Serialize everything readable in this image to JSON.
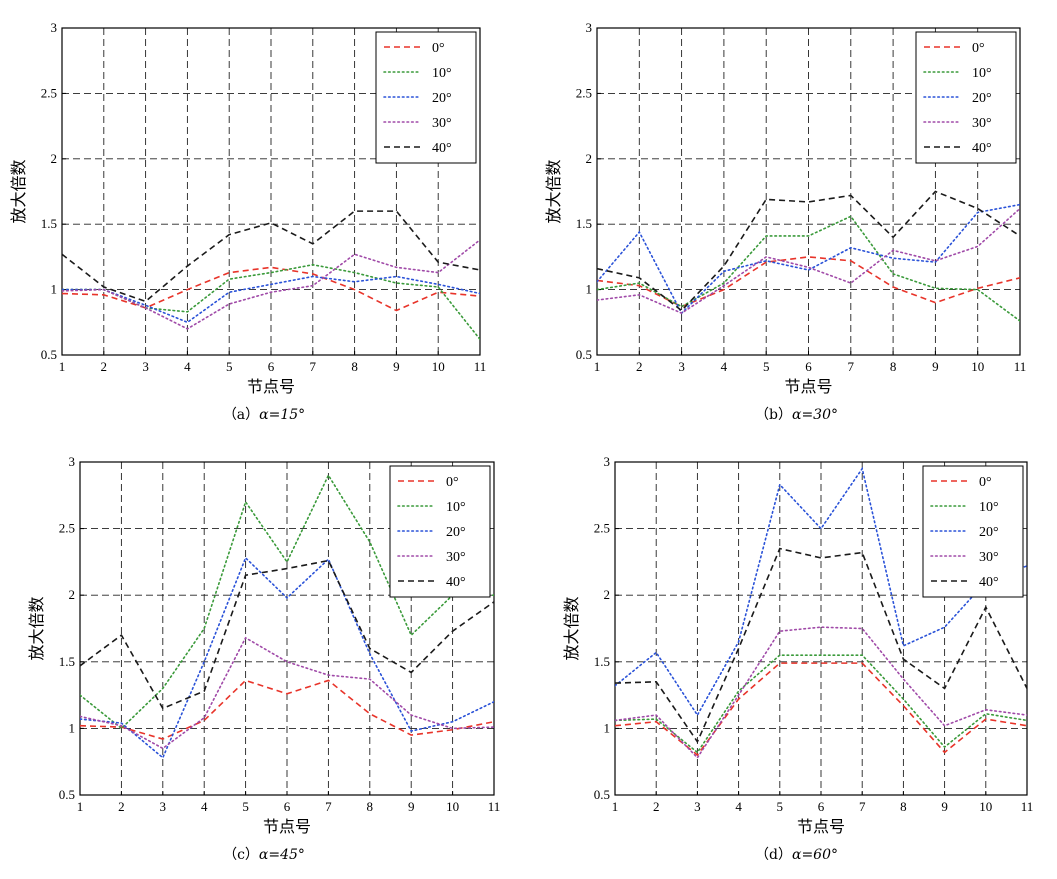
{
  "chart_data": [
    {
      "type": "line",
      "caption_prefix": "（a）",
      "caption_alpha": "α=15°",
      "xlabel": "节点号",
      "ylabel": "放大倍数",
      "x": [
        1,
        2,
        3,
        4,
        5,
        6,
        7,
        8,
        9,
        10,
        11
      ],
      "ylim": [
        0.5,
        3
      ],
      "xlim": [
        1,
        11
      ],
      "yticks": [
        "0.5",
        "1",
        "1.5",
        "2",
        "2.5",
        "3"
      ],
      "xticks": [
        "1",
        "2",
        "3",
        "4",
        "5",
        "6",
        "7",
        "8",
        "9",
        "10",
        "11"
      ],
      "grid": true,
      "legend_position": "top-right",
      "series": [
        {
          "name": "0°",
          "color": "#e8342a",
          "dash": "dashed",
          "values": [
            0.97,
            0.96,
            0.86,
            1.0,
            1.13,
            1.17,
            1.12,
            1.0,
            0.84,
            0.98,
            0.95
          ]
        },
        {
          "name": "10°",
          "color": "#3a9a3a",
          "dash": "dotted",
          "values": [
            1.0,
            1.0,
            0.86,
            0.83,
            1.08,
            1.13,
            1.19,
            1.13,
            1.05,
            1.02,
            0.62
          ]
        },
        {
          "name": "20°",
          "color": "#2a52d8",
          "dash": "dotted",
          "values": [
            1.0,
            1.0,
            0.88,
            0.75,
            0.98,
            1.04,
            1.1,
            1.06,
            1.1,
            1.04,
            0.97
          ]
        },
        {
          "name": "30°",
          "color": "#a04aa8",
          "dash": "dotted",
          "values": [
            0.99,
            1.0,
            0.86,
            0.7,
            0.89,
            0.98,
            1.03,
            1.27,
            1.17,
            1.13,
            1.38
          ]
        },
        {
          "name": "40°",
          "color": "#1a1a1a",
          "dash": "dashed",
          "values": [
            1.27,
            1.02,
            0.91,
            1.18,
            1.42,
            1.51,
            1.35,
            1.6,
            1.6,
            1.21,
            1.15
          ]
        }
      ]
    },
    {
      "type": "line",
      "caption_prefix": "（b）",
      "caption_alpha": "α=30°",
      "xlabel": "节点号",
      "ylabel": "放大倍数",
      "x": [
        1,
        2,
        3,
        4,
        5,
        6,
        7,
        8,
        9,
        10,
        11
      ],
      "ylim": [
        0.5,
        3
      ],
      "xlim": [
        1,
        11
      ],
      "yticks": [
        "0.5",
        "1",
        "1.5",
        "2",
        "2.5",
        "3"
      ],
      "xticks": [
        "1",
        "2",
        "3",
        "4",
        "5",
        "6",
        "7",
        "8",
        "9",
        "10",
        "11"
      ],
      "grid": true,
      "legend_position": "top-right",
      "series": [
        {
          "name": "0°",
          "color": "#e8342a",
          "dash": "dashed",
          "values": [
            1.07,
            1.03,
            0.87,
            1.0,
            1.21,
            1.25,
            1.22,
            1.02,
            0.9,
            1.01,
            1.09
          ]
        },
        {
          "name": "10°",
          "color": "#3a9a3a",
          "dash": "dotted",
          "values": [
            1.0,
            1.05,
            0.87,
            1.05,
            1.41,
            1.41,
            1.56,
            1.12,
            1.01,
            1.0,
            0.76
          ]
        },
        {
          "name": "20°",
          "color": "#2a52d8",
          "dash": "dotted",
          "values": [
            1.06,
            1.44,
            0.82,
            1.14,
            1.22,
            1.15,
            1.32,
            1.24,
            1.21,
            1.59,
            1.65
          ]
        },
        {
          "name": "30°",
          "color": "#a04aa8",
          "dash": "dotted",
          "values": [
            0.92,
            0.96,
            0.82,
            1.03,
            1.25,
            1.17,
            1.05,
            1.3,
            1.22,
            1.33,
            1.62
          ]
        },
        {
          "name": "40°",
          "color": "#1a1a1a",
          "dash": "dashed",
          "values": [
            1.16,
            1.09,
            0.84,
            1.18,
            1.69,
            1.67,
            1.72,
            1.4,
            1.75,
            1.62,
            1.41
          ]
        }
      ]
    },
    {
      "type": "line",
      "caption_prefix": "（c）",
      "caption_alpha": "α=45°",
      "xlabel": "节点号",
      "ylabel": "放大倍数",
      "x": [
        1,
        2,
        3,
        4,
        5,
        6,
        7,
        8,
        9,
        10,
        11
      ],
      "ylim": [
        0.5,
        3
      ],
      "xlim": [
        1,
        11
      ],
      "yticks": [
        "0.5",
        "1",
        "1.5",
        "2",
        "2.5",
        "3"
      ],
      "xticks": [
        "1",
        "2",
        "3",
        "4",
        "5",
        "6",
        "7",
        "8",
        "9",
        "10",
        "11"
      ],
      "grid": true,
      "legend_position": "top-right",
      "series": [
        {
          "name": "0°",
          "color": "#e8342a",
          "dash": "dashed",
          "values": [
            1.02,
            1.01,
            0.92,
            1.06,
            1.36,
            1.26,
            1.36,
            1.11,
            0.95,
            0.99,
            1.05
          ]
        },
        {
          "name": "10°",
          "color": "#3a9a3a",
          "dash": "dotted",
          "values": [
            1.25,
            1.0,
            1.3,
            1.75,
            2.7,
            2.25,
            2.9,
            2.4,
            1.7,
            2.0,
            2.0
          ]
        },
        {
          "name": "20°",
          "color": "#2a52d8",
          "dash": "dotted",
          "values": [
            1.07,
            1.04,
            0.78,
            1.5,
            2.28,
            1.98,
            2.27,
            1.56,
            0.98,
            1.05,
            1.2
          ]
        },
        {
          "name": "30°",
          "color": "#a04aa8",
          "dash": "dotted",
          "values": [
            1.09,
            1.02,
            0.85,
            1.08,
            1.68,
            1.5,
            1.4,
            1.37,
            1.1,
            1.0,
            1.01
          ]
        },
        {
          "name": "40°",
          "color": "#1a1a1a",
          "dash": "dashed",
          "values": [
            1.47,
            1.7,
            1.15,
            1.28,
            2.15,
            2.2,
            2.26,
            1.6,
            1.42,
            1.73,
            1.95
          ]
        }
      ]
    },
    {
      "type": "line",
      "caption_prefix": "（d）",
      "caption_alpha": "α=60°",
      "xlabel": "节点号",
      "ylabel": "放大倍数",
      "x": [
        1,
        2,
        3,
        4,
        5,
        6,
        7,
        8,
        9,
        10,
        11
      ],
      "ylim": [
        0.5,
        3
      ],
      "xlim": [
        1,
        11
      ],
      "yticks": [
        "0.5",
        "1",
        "1.5",
        "2",
        "2.5",
        "3"
      ],
      "xticks": [
        "1",
        "2",
        "3",
        "4",
        "5",
        "6",
        "7",
        "8",
        "9",
        "10",
        "11"
      ],
      "grid": true,
      "legend_position": "top-right",
      "series": [
        {
          "name": "0°",
          "color": "#e8342a",
          "dash": "dashed",
          "values": [
            1.02,
            1.05,
            0.8,
            1.22,
            1.49,
            1.49,
            1.49,
            1.17,
            0.82,
            1.07,
            1.02
          ]
        },
        {
          "name": "10°",
          "color": "#3a9a3a",
          "dash": "dotted",
          "values": [
            1.06,
            1.07,
            0.82,
            1.28,
            1.55,
            1.55,
            1.55,
            1.22,
            0.86,
            1.11,
            1.06
          ]
        },
        {
          "name": "20°",
          "color": "#2a52d8",
          "dash": "dotted",
          "values": [
            1.32,
            1.57,
            1.1,
            1.65,
            2.83,
            2.5,
            2.95,
            1.62,
            1.76,
            2.1,
            2.22
          ]
        },
        {
          "name": "30°",
          "color": "#a04aa8",
          "dash": "dotted",
          "values": [
            1.06,
            1.1,
            0.78,
            1.25,
            1.73,
            1.76,
            1.75,
            1.37,
            1.02,
            1.14,
            1.1
          ]
        },
        {
          "name": "40°",
          "color": "#1a1a1a",
          "dash": "dashed",
          "values": [
            1.34,
            1.35,
            0.9,
            1.6,
            2.35,
            2.28,
            2.32,
            1.52,
            1.3,
            1.91,
            1.3
          ]
        }
      ]
    }
  ]
}
